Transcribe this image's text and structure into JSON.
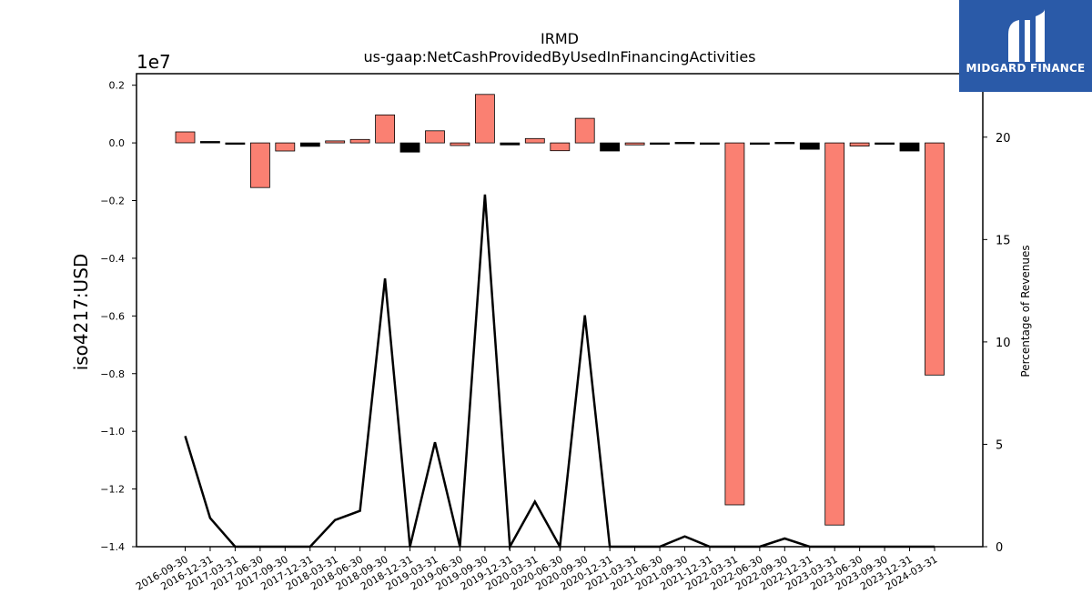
{
  "chart_data": {
    "type": "bar",
    "title": "IRMD",
    "subtitle": "us-gaap:NetCashProvidedByUsedInFinancingActivities",
    "ylabel": "iso4217:USD",
    "y_offset_label": "1e7",
    "y2label": "Percentage of Revenues",
    "ylim": [
      -1.4,
      0.24
    ],
    "y2lim": [
      0,
      23.1
    ],
    "yticks": [
      "0.2",
      "0.0",
      "−0.2",
      "−0.4",
      "−0.6",
      "−0.8",
      "−1.0",
      "−1.2",
      "−1.4"
    ],
    "y2ticks": [
      "0",
      "5",
      "10",
      "15",
      "20"
    ],
    "categories": [
      "2016-09-30",
      "2016-12-31",
      "2017-03-31",
      "2017-06-30",
      "2017-09-30",
      "2017-12-31",
      "2018-03-31",
      "2018-06-30",
      "2018-09-30",
      "2018-12-31",
      "2019-03-31",
      "2019-06-30",
      "2019-09-30",
      "2019-12-31",
      "2020-03-31",
      "2020-06-30",
      "2020-09-30",
      "2020-12-31",
      "2021-03-31",
      "2021-06-30",
      "2021-09-30",
      "2021-12-31",
      "2022-03-31",
      "2022-06-30",
      "2022-09-30",
      "2022-12-31",
      "2023-03-31",
      "2023-06-30",
      "2023-09-30",
      "2023-12-31",
      "2024-03-31"
    ],
    "series": [
      {
        "kind": "bar",
        "values": [
          0.038,
          0.005,
          -0.003,
          -0.155,
          -0.028,
          -0.012,
          0.007,
          0.012,
          0.097,
          -0.032,
          0.042,
          -0.009,
          0.168,
          -0.007,
          0.015,
          -0.027,
          0.085,
          -0.028,
          -0.007,
          -0.002,
          0.002,
          -0.001,
          -1.255,
          -0.004,
          0.002,
          -0.022,
          -1.325,
          -0.011,
          -0.004,
          -0.028,
          -0.805
        ],
        "bar_colors": [
          "salmon",
          "black",
          "black",
          "salmon",
          "salmon",
          "black",
          "salmon",
          "salmon",
          "salmon",
          "black",
          "salmon",
          "salmon",
          "salmon",
          "black",
          "salmon",
          "salmon",
          "salmon",
          "black",
          "salmon",
          "black",
          "black",
          "black",
          "salmon",
          "black",
          "black",
          "black",
          "salmon",
          "salmon",
          "black",
          "black",
          "salmon"
        ]
      },
      {
        "kind": "line",
        "axis": "secondary",
        "values": [
          5.4,
          1.4,
          0,
          0,
          0,
          0,
          1.3,
          1.75,
          13.1,
          0,
          5.1,
          0,
          17.2,
          0,
          2.2,
          0,
          11.3,
          0,
          0,
          0,
          0.5,
          0,
          0,
          0,
          0.4,
          0,
          0,
          0,
          0,
          0,
          0
        ]
      }
    ],
    "colors": {
      "salmon": "#fa8072",
      "black": "#000000"
    },
    "grid": false
  },
  "logo": {
    "text": "MIDGARD FINANCE",
    "background": "#2a5aa8"
  }
}
